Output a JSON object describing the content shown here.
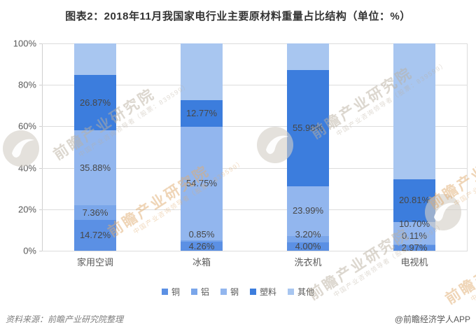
{
  "title": "图表2：2018年11月我国家电行业主要原材料重量占比结构（单位：%）",
  "footer": {
    "source": "资料来源：前瞻产业研究院整理",
    "credit": "@前瞻经济学人APP"
  },
  "watermark": {
    "brand": "前瞻产业研究院",
    "tagline": "中国产业咨询领导者（股票：839599）"
  },
  "chart_data": {
    "type": "bar",
    "stacked": true,
    "title": "图表2：2018年11月我国家电行业主要原材料重量占比结构（单位：%）",
    "categories": [
      "家用空调",
      "冰箱",
      "洗衣机",
      "电视机"
    ],
    "series": [
      {
        "name": "铜",
        "color": "#5B90E4",
        "labeled": true,
        "values": [
          14.72,
          4.26,
          4.0,
          2.97
        ]
      },
      {
        "name": "铝",
        "color": "#7AA6EA",
        "labeled": true,
        "values": [
          7.36,
          0.85,
          3.2,
          0.11
        ]
      },
      {
        "name": "钢",
        "color": "#92B6EE",
        "labeled": true,
        "values": [
          35.88,
          54.75,
          23.99,
          10.7
        ]
      },
      {
        "name": "塑料",
        "color": "#3C7DDD",
        "labeled": true,
        "values": [
          26.87,
          12.77,
          55.98,
          20.81
        ]
      },
      {
        "name": "其他",
        "color": "#A8C6F0",
        "labeled": false,
        "values": [
          15.17,
          27.37,
          12.83,
          65.41
        ]
      }
    ],
    "xlabel": "",
    "ylabel": "",
    "ylim": [
      0,
      100
    ],
    "y_ticks": [
      "0%",
      "20%",
      "40%",
      "60%",
      "80%",
      "100%"
    ],
    "grid": true,
    "legend_position": "bottom"
  }
}
